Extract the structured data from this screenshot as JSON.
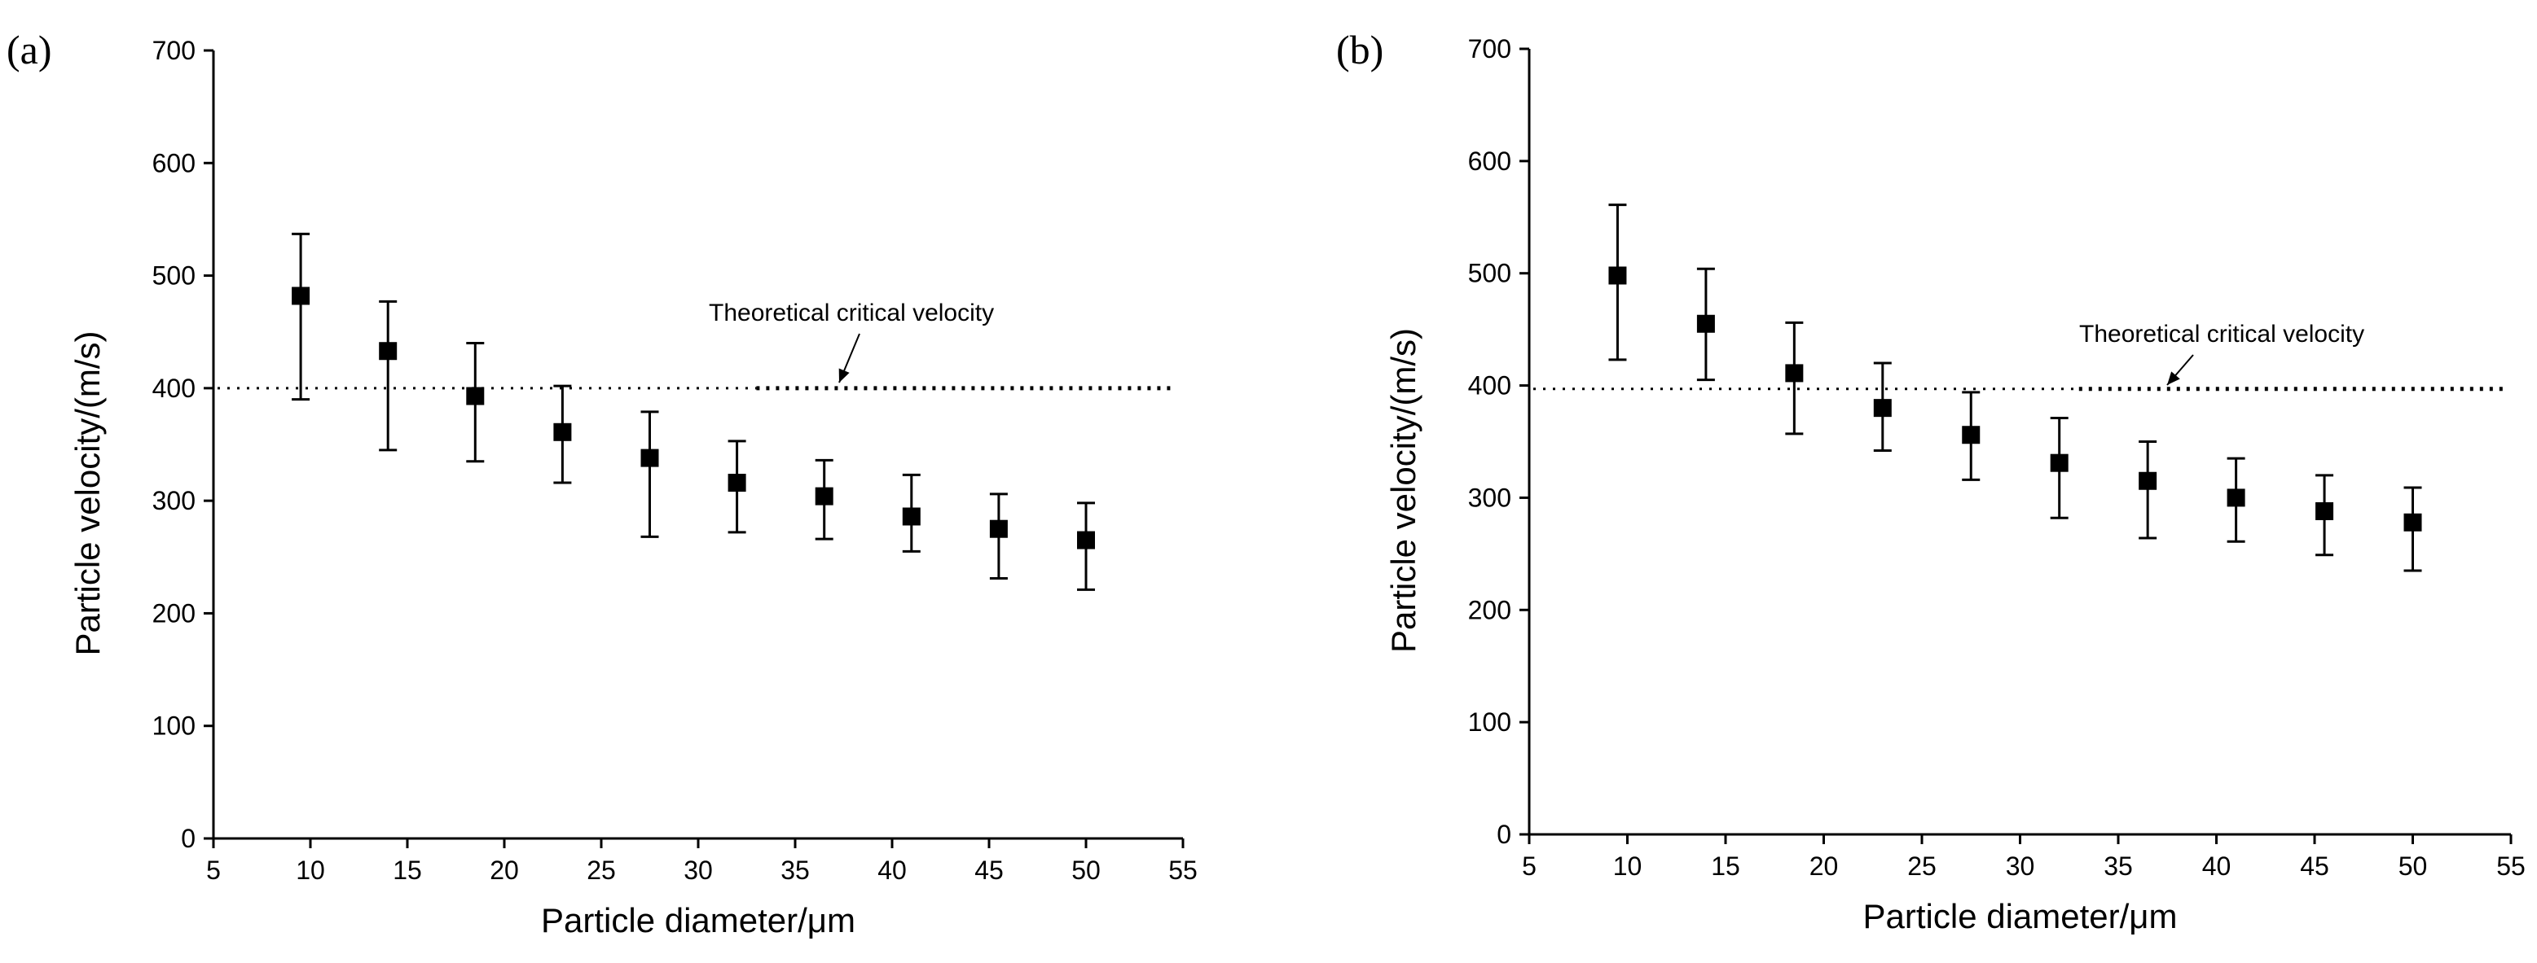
{
  "chart_data": [
    {
      "type": "scatter",
      "panel_label": "(a)",
      "xlabel": "Particle diameter/μm",
      "ylabel": "Particle velocity/(m/s)",
      "xlim": [
        5,
        55
      ],
      "ylim": [
        0,
        700
      ],
      "xticks": [
        5,
        10,
        15,
        20,
        25,
        30,
        35,
        40,
        45,
        50,
        55
      ],
      "yticks": [
        0,
        100,
        200,
        300,
        400,
        500,
        600,
        700
      ],
      "grid": false,
      "series": [
        {
          "name": "Particle velocity",
          "x": [
            9.5,
            14,
            18.5,
            23,
            27.5,
            32,
            36.5,
            41,
            45.5,
            50
          ],
          "y": [
            482,
            433,
            393,
            361,
            338,
            316,
            304,
            286,
            275,
            265
          ],
          "err_low": [
            390,
            345,
            335,
            316,
            268,
            272,
            266,
            255,
            231,
            221
          ],
          "err_high": [
            537,
            477,
            440,
            402,
            379,
            353,
            336,
            323,
            306,
            298
          ]
        }
      ],
      "reference_line": {
        "y": 400,
        "label": "Theoretical critical velocity",
        "dense_from_x": 33
      }
    },
    {
      "type": "scatter",
      "panel_label": "(b)",
      "xlabel": "Particle diameter/μm",
      "ylabel": "Particle velocity/(m/s)",
      "xlim": [
        5,
        55
      ],
      "ylim": [
        0,
        700
      ],
      "xticks": [
        5,
        10,
        15,
        20,
        25,
        30,
        35,
        40,
        45,
        50,
        55
      ],
      "yticks": [
        0,
        100,
        200,
        300,
        400,
        500,
        600,
        700
      ],
      "grid": false,
      "series": [
        {
          "name": "Particle velocity",
          "x": [
            9.5,
            14,
            18.5,
            23,
            27.5,
            32,
            36.5,
            41,
            45.5,
            50
          ],
          "y": [
            498,
            455,
            411,
            380,
            356,
            331,
            315,
            300,
            288,
            278
          ],
          "err_low": [
            423,
            405,
            357,
            342,
            316,
            282,
            264,
            261,
            249,
            235
          ],
          "err_high": [
            561,
            504,
            456,
            420,
            394,
            371,
            350,
            335,
            320,
            309
          ]
        }
      ],
      "reference_line": {
        "y": 397,
        "label": "Theoretical critical velocity",
        "dense_from_x": 33
      }
    }
  ]
}
